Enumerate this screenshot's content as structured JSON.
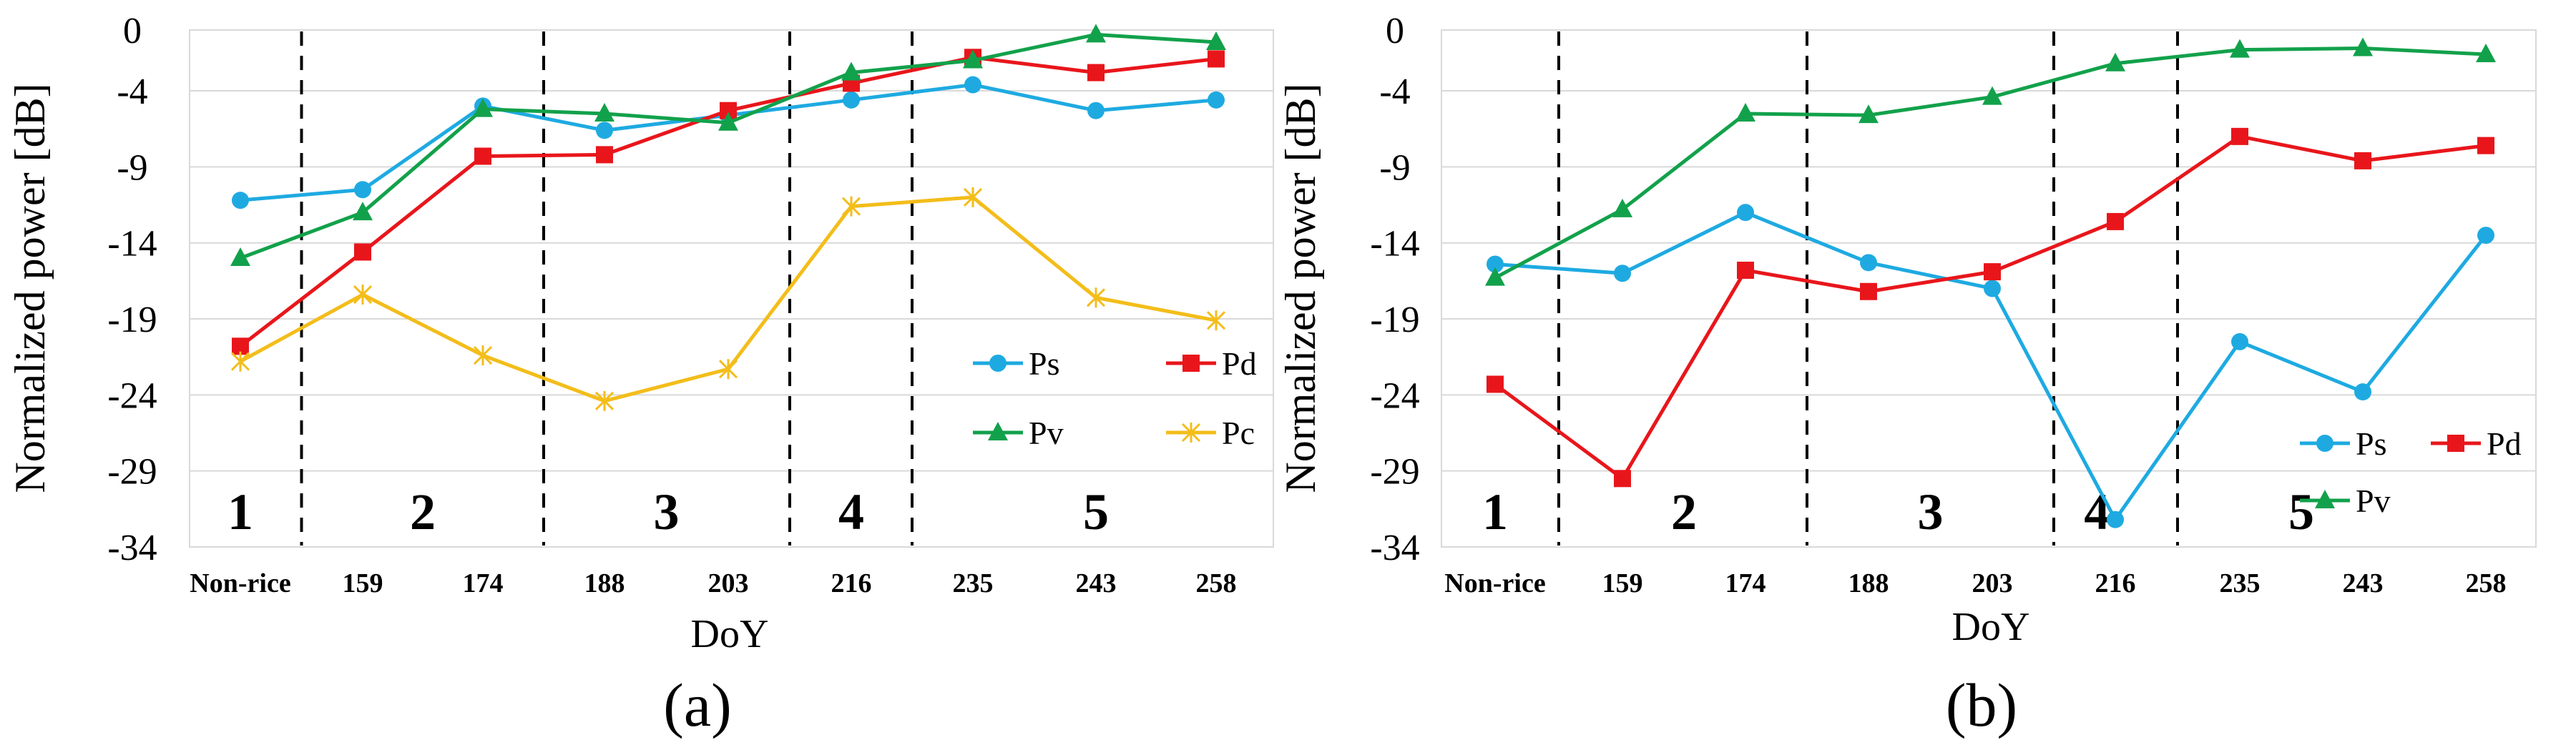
{
  "chart_data": [
    {
      "type": "line",
      "panel_label": "(a)",
      "xlabel": "DoY",
      "ylabel": "Normalized  power [dB]",
      "ylim": [
        -34,
        0
      ],
      "yticks": [
        0,
        -4,
        -9,
        -14,
        -19,
        -24,
        -29,
        -34
      ],
      "ytick_labels": [
        "0",
        "-4",
        "-9",
        "-14",
        "-19",
        "-24",
        "-29",
        "-34"
      ],
      "categories": [
        "Non-rice",
        "159",
        "174",
        "188",
        "203",
        "216",
        "235",
        "243",
        "258"
      ],
      "grid": true,
      "legend_position": "bottom-right",
      "phase_dividers_after_index": [
        0.5,
        2.5,
        4.5,
        5.5
      ],
      "phase_labels": [
        {
          "text": "1",
          "center": 0
        },
        {
          "text": "2",
          "center": 1.5
        },
        {
          "text": "3",
          "center": 3.5
        },
        {
          "text": "4",
          "center": 5.0
        },
        {
          "text": "5",
          "center": 7.0
        }
      ],
      "series": [
        {
          "name": "Ps",
          "color": "#1eaae1",
          "marker": "circle",
          "values": [
            -11.2,
            -10.5,
            -5.0,
            -6.6,
            -5.6,
            -4.6,
            -3.6,
            -5.3,
            -4.6
          ]
        },
        {
          "name": "Pd",
          "color": "#e8161b",
          "marker": "square",
          "values": [
            -20.8,
            -14.6,
            -8.3,
            -8.2,
            -5.3,
            -3.5,
            -1.8,
            -2.8,
            -1.9
          ]
        },
        {
          "name": "Pv",
          "color": "#12a14b",
          "marker": "triangle",
          "values": [
            -15.0,
            -12.0,
            -5.2,
            -5.5,
            -6.1,
            -2.8,
            -2.0,
            -0.3,
            -0.8
          ]
        },
        {
          "name": "Pc",
          "color": "#f3bd1a",
          "marker": "star",
          "values": [
            -21.8,
            -17.4,
            -21.4,
            -24.4,
            -22.3,
            -11.6,
            -11.0,
            -17.6,
            -19.1
          ]
        }
      ]
    },
    {
      "type": "line",
      "panel_label": "(b)",
      "xlabel": "DoY",
      "ylabel": "Normalized power [dB]",
      "ylim": [
        -34,
        0
      ],
      "yticks": [
        0,
        -4,
        -9,
        -14,
        -19,
        -24,
        -29,
        -34
      ],
      "ytick_labels": [
        "0",
        "-4",
        "-9",
        "-14",
        "-19",
        "-24",
        "-29",
        "-34"
      ],
      "categories": [
        "Non-rice",
        "159",
        "174",
        "188",
        "203",
        "216",
        "235",
        "243",
        "258"
      ],
      "grid": true,
      "legend_position": "bottom-right",
      "phase_dividers_after_index": [
        0.5,
        2.5,
        4.5,
        5.5
      ],
      "phase_labels": [
        {
          "text": "1",
          "center": 0
        },
        {
          "text": "2",
          "center": 1.5
        },
        {
          "text": "3",
          "center": 3.5
        },
        {
          "text": "4",
          "center": 4.85
        },
        {
          "text": "5",
          "center": 6.5
        }
      ],
      "series": [
        {
          "name": "Ps",
          "color": "#1eaae1",
          "marker": "circle",
          "values": [
            -15.4,
            -16.0,
            -12.0,
            -15.3,
            -17.0,
            -32.2,
            -20.5,
            -23.8,
            -13.5
          ]
        },
        {
          "name": "Pd",
          "color": "#e8161b",
          "marker": "square",
          "values": [
            -23.3,
            -29.5,
            -15.8,
            -17.2,
            -15.9,
            -12.6,
            -7.0,
            -8.6,
            -7.6
          ]
        },
        {
          "name": "Pv",
          "color": "#12a14b",
          "marker": "triangle",
          "values": [
            -16.3,
            -11.8,
            -5.5,
            -5.6,
            -4.4,
            -2.2,
            -1.3,
            -1.2,
            -1.6
          ]
        }
      ]
    }
  ]
}
